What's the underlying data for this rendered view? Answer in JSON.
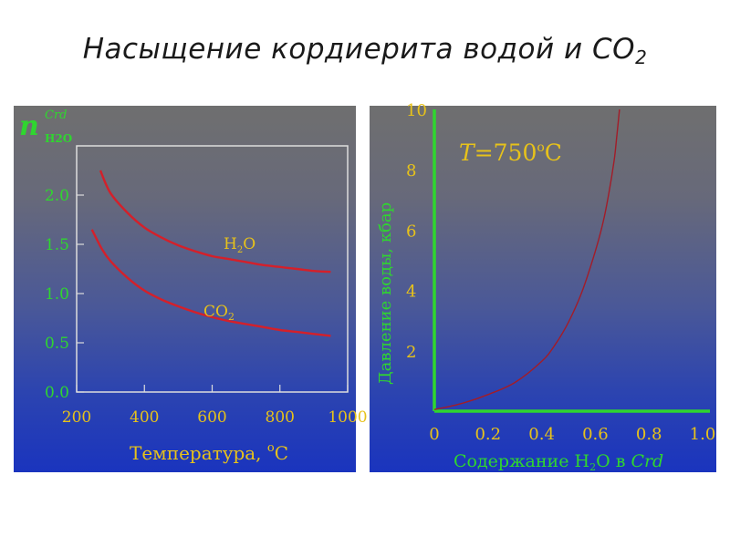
{
  "slide": {
    "title_main": "Насыщение кордиерита водой и CO",
    "title_sub": "2"
  },
  "colors": {
    "label_green": "#2fd62f",
    "label_yellow": "#e7c21a",
    "curve_red": "#d4202a",
    "curve_thin_red": "#a31c28",
    "axis_white": "#dddddd"
  },
  "chart_data": [
    {
      "type": "line",
      "ylabel_main": "n",
      "ylabel_sup": "Crd",
      "ylabel_sub": "H2O",
      "xlabel": "Температура, ",
      "xlabel_unit_sup": "o",
      "xlabel_unit": "C",
      "xlim": [
        200,
        1000
      ],
      "ylim": [
        0,
        2.5
      ],
      "xticks": [
        "200",
        "400",
        "600",
        "800",
        "1000"
      ],
      "yticks": [
        "0.0",
        "0.5",
        "1.0",
        "1.5",
        "2.0"
      ],
      "grid": false,
      "series": [
        {
          "name_main": "H",
          "name_sub": "2",
          "name_rest": "O",
          "x": [
            270,
            300,
            350,
            400,
            450,
            500,
            550,
            600,
            650,
            700,
            750,
            800,
            850,
            900,
            950
          ],
          "y": [
            2.25,
            2.02,
            1.82,
            1.67,
            1.57,
            1.49,
            1.43,
            1.38,
            1.35,
            1.32,
            1.29,
            1.27,
            1.25,
            1.23,
            1.22
          ]
        },
        {
          "name_main": "CO",
          "name_sub": "2",
          "name_rest": "",
          "x": [
            245,
            275,
            300,
            350,
            400,
            450,
            500,
            550,
            600,
            650,
            700,
            750,
            800,
            850,
            900,
            950
          ],
          "y": [
            1.65,
            1.45,
            1.33,
            1.16,
            1.03,
            0.94,
            0.87,
            0.81,
            0.76,
            0.72,
            0.69,
            0.66,
            0.63,
            0.61,
            0.59,
            0.57
          ]
        }
      ]
    },
    {
      "type": "line",
      "annotation_T": "T",
      "annotation_value": "=750",
      "annotation_sup": "o",
      "annotation_unit": "C",
      "ylabel": "Давление воды, кбар",
      "xlabel_pre": "Содержание H",
      "xlabel_sub": "2",
      "xlabel_post": "O в ",
      "xlabel_italic": "Crd",
      "xlim": [
        0,
        1.0
      ],
      "ylim": [
        0,
        10
      ],
      "xticks": [
        "0",
        "0.2",
        "0.4",
        "0.6",
        "0.8",
        "1.0"
      ],
      "yticks": [
        "2",
        "4",
        "6",
        "8",
        "10"
      ],
      "grid": false,
      "series": [
        {
          "x": [
            0.0,
            0.1,
            0.2,
            0.3,
            0.4,
            0.45,
            0.5,
            0.55,
            0.6,
            0.63,
            0.65,
            0.67,
            0.68,
            0.69
          ],
          "y": [
            0.05,
            0.25,
            0.55,
            0.95,
            1.65,
            2.2,
            2.95,
            3.95,
            5.3,
            6.3,
            7.2,
            8.3,
            9.1,
            10.0
          ]
        }
      ]
    }
  ]
}
